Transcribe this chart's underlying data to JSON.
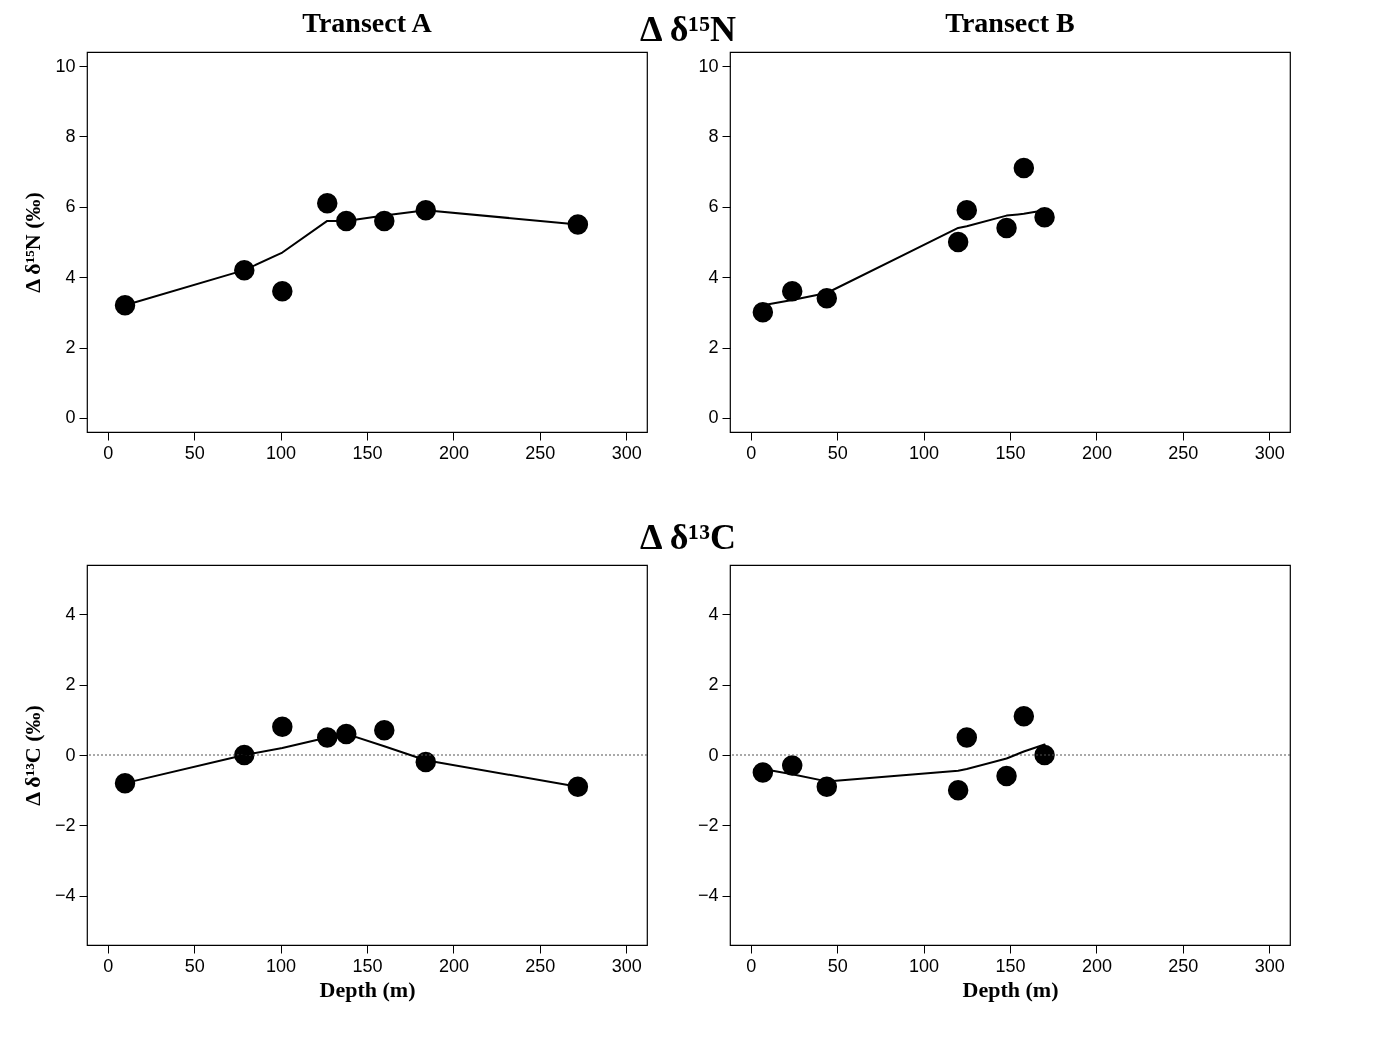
{
  "chart_data": [
    {
      "type": "scatter",
      "title": "Transect A",
      "ylabel": "Δ δ¹⁵N (‰)",
      "annotations": [
        "Δ δ¹⁵N"
      ],
      "xlim": [
        -12,
        312
      ],
      "xticks": [
        0,
        50,
        100,
        150,
        200,
        250,
        300
      ],
      "ylim": [
        -0.4,
        10.4
      ],
      "yticks": [
        0,
        2,
        4,
        6,
        8,
        10
      ],
      "grid": false,
      "series": [
        {
          "type": "scatter",
          "marker": "circle",
          "color": "#000000",
          "x": [
            10,
            79,
            101,
            127,
            138,
            160,
            184,
            272
          ],
          "values": [
            3.2,
            4.2,
            3.6,
            6.1,
            5.6,
            5.6,
            5.9,
            5.5
          ]
        },
        {
          "type": "line",
          "line_style": "solid",
          "color": "#000000",
          "x": [
            10,
            79,
            101,
            127,
            138,
            160,
            184,
            272
          ],
          "values": [
            3.2,
            4.2,
            4.7,
            5.6,
            5.6,
            5.75,
            5.9,
            5.5
          ]
        }
      ]
    },
    {
      "type": "scatter",
      "title": "Transect B",
      "xlim": [
        -12,
        312
      ],
      "xticks": [
        0,
        50,
        100,
        150,
        200,
        250,
        300
      ],
      "ylim": [
        -0.4,
        10.4
      ],
      "yticks": [
        0,
        2,
        4,
        6,
        8,
        10
      ],
      "grid": false,
      "series": [
        {
          "type": "scatter",
          "marker": "circle",
          "color": "#000000",
          "x": [
            7,
            24,
            44,
            120,
            125,
            148,
            158,
            170
          ],
          "values": [
            3.0,
            3.6,
            3.4,
            5.0,
            5.9,
            5.4,
            7.1,
            5.7
          ]
        },
        {
          "type": "line",
          "line_style": "solid",
          "color": "#000000",
          "x": [
            7,
            24,
            44,
            120,
            125,
            148,
            158,
            170
          ],
          "values": [
            3.2,
            3.35,
            3.55,
            5.4,
            5.45,
            5.75,
            5.8,
            5.9
          ]
        }
      ]
    },
    {
      "type": "scatter",
      "xlabel": "Depth (m)",
      "ylabel": "Δ δ¹³C (‰)",
      "annotations": [
        "Δ δ¹³C"
      ],
      "xlim": [
        -12,
        312
      ],
      "xticks": [
        0,
        50,
        100,
        150,
        200,
        250,
        300
      ],
      "ylim": [
        -5.4,
        5.4
      ],
      "yticks": [
        -4,
        -2,
        0,
        2,
        4
      ],
      "grid": false,
      "ref_lines": [
        {
          "axis": "y",
          "value": 0,
          "color": "#555555",
          "line_style": "dotted"
        }
      ],
      "series": [
        {
          "type": "scatter",
          "marker": "circle",
          "color": "#000000",
          "x": [
            10,
            79,
            101,
            127,
            138,
            160,
            184,
            272
          ],
          "values": [
            -0.8,
            0.0,
            0.8,
            0.5,
            0.6,
            0.7,
            -0.2,
            -0.9
          ]
        },
        {
          "type": "line",
          "line_style": "solid",
          "color": "#000000",
          "x": [
            10,
            79,
            101,
            127,
            138,
            160,
            184,
            272
          ],
          "values": [
            -0.8,
            0.0,
            0.2,
            0.5,
            0.6,
            0.25,
            -0.15,
            -0.9
          ]
        }
      ]
    },
    {
      "type": "scatter",
      "xlabel": "Depth (m)",
      "xlim": [
        -12,
        312
      ],
      "xticks": [
        0,
        50,
        100,
        150,
        200,
        250,
        300
      ],
      "ylim": [
        -5.4,
        5.4
      ],
      "yticks": [
        -4,
        -2,
        0,
        2,
        4
      ],
      "grid": false,
      "ref_lines": [
        {
          "axis": "y",
          "value": 0,
          "color": "#555555",
          "line_style": "dotted"
        }
      ],
      "series": [
        {
          "type": "scatter",
          "marker": "circle",
          "color": "#000000",
          "x": [
            7,
            24,
            44,
            120,
            125,
            148,
            158,
            170
          ],
          "values": [
            -0.5,
            -0.3,
            -0.9,
            -1.0,
            0.5,
            -0.6,
            1.1,
            0.0
          ]
        },
        {
          "type": "line",
          "line_style": "solid",
          "color": "#000000",
          "x": [
            7,
            24,
            44,
            120,
            125,
            148,
            158,
            170
          ],
          "values": [
            -0.4,
            -0.55,
            -0.75,
            -0.45,
            -0.4,
            -0.1,
            0.1,
            0.3
          ]
        }
      ]
    }
  ]
}
